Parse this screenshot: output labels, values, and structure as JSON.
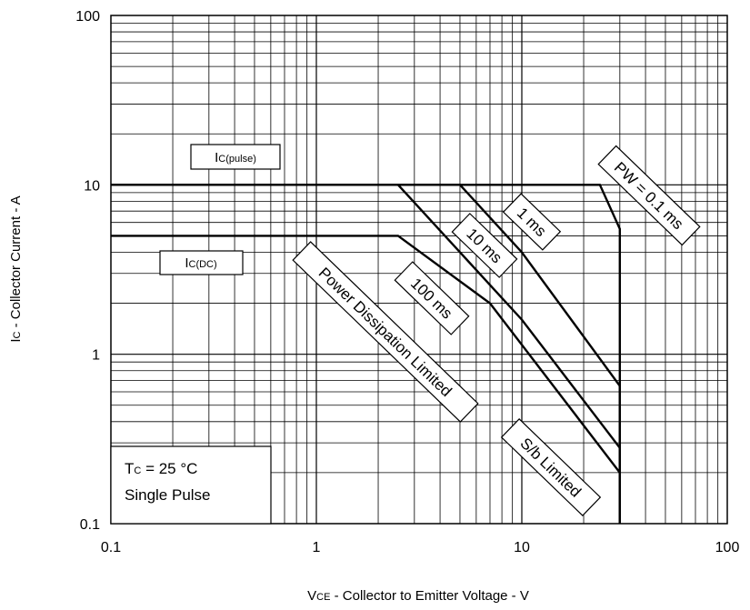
{
  "chart_data": {
    "type": "line",
    "x_scale": "log",
    "y_scale": "log",
    "xlim": [
      0.1,
      100
    ],
    "ylim": [
      0.1,
      100
    ],
    "grid": true,
    "x_ticks": [
      "0.1",
      "1",
      "10",
      "100"
    ],
    "y_ticks": [
      "0.1",
      "1",
      "10",
      "100"
    ],
    "xlabel": {
      "main": "V",
      "sub": "CE",
      "rest": " - Collector to Emitter Voltage - V"
    },
    "ylabel": {
      "main": "I",
      "sub": "C",
      "rest": " - Collector Current - A"
    },
    "series": [
      {
        "name": "PW = 0.1 ms",
        "points": [
          [
            0.1,
            10
          ],
          [
            24,
            10
          ],
          [
            30,
            5.5
          ],
          [
            30,
            0.1
          ]
        ]
      },
      {
        "name": "1 ms",
        "points": [
          [
            0.1,
            10
          ],
          [
            5,
            10
          ],
          [
            10,
            4
          ],
          [
            30,
            0.65
          ],
          [
            30,
            0.1
          ]
        ]
      },
      {
        "name": "10 ms",
        "points": [
          [
            2.5,
            10
          ],
          [
            10,
            1.6
          ],
          [
            30,
            0.28
          ],
          [
            30,
            0.1
          ]
        ]
      },
      {
        "name": "100 ms",
        "points": [
          [
            0.1,
            5
          ],
          [
            2.5,
            5
          ],
          [
            7,
            2
          ],
          [
            30,
            0.2
          ],
          [
            30,
            0.1
          ]
        ]
      }
    ],
    "annotations": {
      "ic_pulse": {
        "main": "I",
        "sub": "C(pulse)"
      },
      "ic_dc": {
        "main": "I",
        "sub": "C(DC)"
      },
      "pw": "PW = 0.1 ms",
      "ms1": "1 ms",
      "ms10": "10 ms",
      "ms100": "100 ms",
      "power": "Power Dissipation Limited",
      "sb": "S/b Limited",
      "cond_line1": {
        "main": "T",
        "sub": "C",
        "rest": " = 25 °C"
      },
      "cond_line2": "Single Pulse"
    }
  }
}
